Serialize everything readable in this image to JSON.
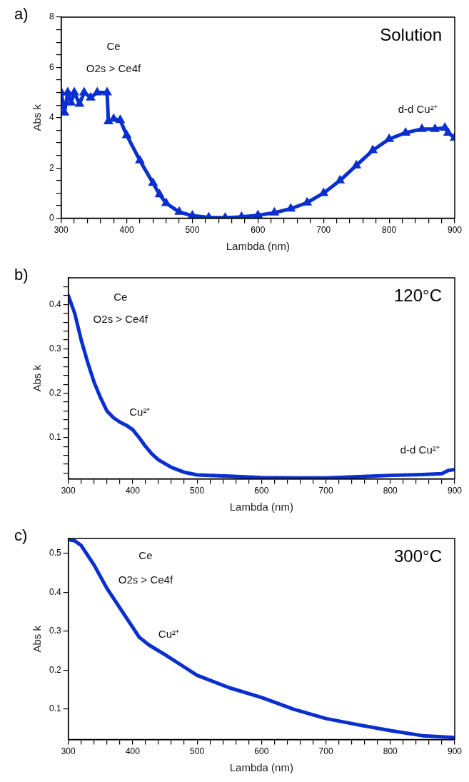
{
  "chart_data": [
    {
      "type": "line",
      "title": "a)",
      "subtitle": "Solution",
      "xlabel": "Lambda (nm)",
      "ylabel": "Abs k",
      "marker": "triangle",
      "x": [
        300,
        305,
        310,
        315,
        320,
        328,
        335,
        345,
        355,
        370,
        372,
        380,
        390,
        400,
        420,
        440,
        450,
        460,
        480,
        500,
        525,
        550,
        575,
        600,
        625,
        650,
        675,
        700,
        725,
        750,
        775,
        800,
        825,
        850,
        870,
        885,
        890,
        900
      ],
      "series": [
        {
          "color": "#0a2fd0",
          "values": [
            5.0,
            4.2,
            5.0,
            4.6,
            5.0,
            4.55,
            5.0,
            4.8,
            5.0,
            5.0,
            3.85,
            3.95,
            3.9,
            3.3,
            2.3,
            1.4,
            0.95,
            0.6,
            0.25,
            0.1,
            0.03,
            0.02,
            0.05,
            0.12,
            0.22,
            0.38,
            0.62,
            1.0,
            1.5,
            2.1,
            2.7,
            3.15,
            3.4,
            3.55,
            3.55,
            3.6,
            3.4,
            3.2
          ]
        }
      ],
      "xlim": [
        300,
        900
      ],
      "ylim": [
        0,
        8
      ],
      "xticks": [
        300,
        {
          "value": 320,
          "label": null
        },
        {
          "value": 340,
          "label": null
        },
        {
          "value": 360,
          "label": null
        },
        {
          "value": 380,
          "label": null
        },
        400,
        {
          "value": 420,
          "label": null
        },
        {
          "value": 440,
          "label": null
        },
        {
          "value": 460,
          "label": null
        },
        {
          "value": 480,
          "label": null
        },
        500,
        {
          "value": 520,
          "label": null
        },
        {
          "value": 540,
          "label": null
        },
        {
          "value": 560,
          "label": null
        },
        {
          "value": 580,
          "label": null
        },
        600,
        {
          "value": 620,
          "label": null
        },
        {
          "value": 640,
          "label": null
        },
        {
          "value": 660,
          "label": null
        },
        {
          "value": 680,
          "label": null
        },
        700,
        {
          "value": 720,
          "label": null
        },
        {
          "value": 740,
          "label": null
        },
        {
          "value": 760,
          "label": null
        },
        {
          "value": 780,
          "label": null
        },
        800,
        {
          "value": 820,
          "label": null
        },
        {
          "value": 840,
          "label": null
        },
        {
          "value": 860,
          "label": null
        },
        {
          "value": 880,
          "label": null
        },
        900
      ],
      "yticks": [
        0,
        {
          "value": 0.5,
          "label": null
        },
        {
          "value": 1,
          "label": null
        },
        {
          "value": 1.5,
          "label": null
        },
        2,
        {
          "value": 2.5,
          "label": null
        },
        {
          "value": 3,
          "label": null
        },
        {
          "value": 3.5,
          "label": null
        },
        4,
        {
          "value": 4.5,
          "label": null
        },
        {
          "value": 5,
          "label": null
        },
        {
          "value": 5.5,
          "label": null
        },
        6,
        {
          "value": 6.5,
          "label": null
        },
        {
          "value": 7,
          "label": null
        },
        {
          "value": 7.5,
          "label": null
        },
        8
      ],
      "annotations": [
        "Ce",
        "O2s > Ce4f",
        "d-d Cu²⁺"
      ]
    },
    {
      "type": "line",
      "title": "b)",
      "subtitle": "120°C",
      "xlabel": "Lambda (nm)",
      "ylabel": "Abs k",
      "x": [
        300,
        310,
        320,
        330,
        340,
        350,
        360,
        370,
        380,
        390,
        400,
        410,
        420,
        430,
        440,
        460,
        480,
        500,
        550,
        600,
        650,
        700,
        750,
        800,
        850,
        880,
        890,
        900
      ],
      "series": [
        {
          "color": "#0a2fd0",
          "values": [
            0.42,
            0.38,
            0.32,
            0.27,
            0.225,
            0.19,
            0.16,
            0.145,
            0.135,
            0.128,
            0.118,
            0.1,
            0.08,
            0.063,
            0.05,
            0.033,
            0.022,
            0.016,
            0.013,
            0.01,
            0.009,
            0.009,
            0.012,
            0.015,
            0.017,
            0.019,
            0.026,
            0.028
          ]
        }
      ],
      "xlim": [
        300,
        900
      ],
      "ylim": [
        0.007,
        0.46
      ],
      "xticks": [
        300,
        {
          "value": 320,
          "label": null
        },
        {
          "value": 340,
          "label": null
        },
        {
          "value": 360,
          "label": null
        },
        {
          "value": 380,
          "label": null
        },
        400,
        {
          "value": 420,
          "label": null
        },
        {
          "value": 440,
          "label": null
        },
        {
          "value": 460,
          "label": null
        },
        {
          "value": 480,
          "label": null
        },
        500,
        {
          "value": 520,
          "label": null
        },
        {
          "value": 540,
          "label": null
        },
        {
          "value": 560,
          "label": null
        },
        {
          "value": 580,
          "label": null
        },
        600,
        {
          "value": 620,
          "label": null
        },
        {
          "value": 640,
          "label": null
        },
        {
          "value": 660,
          "label": null
        },
        {
          "value": 680,
          "label": null
        },
        700,
        {
          "value": 720,
          "label": null
        },
        {
          "value": 740,
          "label": null
        },
        {
          "value": 760,
          "label": null
        },
        {
          "value": 780,
          "label": null
        },
        800,
        {
          "value": 820,
          "label": null
        },
        {
          "value": 840,
          "label": null
        },
        {
          "value": 860,
          "label": null
        },
        {
          "value": 880,
          "label": null
        },
        900
      ],
      "yticks": [
        {
          "value": 0.02,
          "label": null
        },
        {
          "value": 0.04,
          "label": null
        },
        {
          "value": 0.06,
          "label": null
        },
        {
          "value": 0.08,
          "label": null
        },
        0.1,
        {
          "value": 0.12,
          "label": null
        },
        {
          "value": 0.14,
          "label": null
        },
        {
          "value": 0.16,
          "label": null
        },
        {
          "value": 0.18,
          "label": null
        },
        0.2,
        {
          "value": 0.22,
          "label": null
        },
        {
          "value": 0.24,
          "label": null
        },
        {
          "value": 0.26,
          "label": null
        },
        {
          "value": 0.28,
          "label": null
        },
        0.3,
        {
          "value": 0.32,
          "label": null
        },
        {
          "value": 0.34,
          "label": null
        },
        {
          "value": 0.36,
          "label": null
        },
        {
          "value": 0.38,
          "label": null
        },
        0.4,
        {
          "value": 0.42,
          "label": null
        },
        {
          "value": 0.44,
          "label": null
        }
      ],
      "annotations": [
        "Ce",
        "O2s > Ce4f",
        "Cu²⁺",
        "d-d Cu²⁺"
      ]
    },
    {
      "type": "line",
      "title": "c)",
      "subtitle": "300°C",
      "xlabel": "Lambda (nm)",
      "ylabel": "Abs k",
      "x": [
        300,
        310,
        320,
        340,
        360,
        380,
        400,
        410,
        425,
        450,
        500,
        550,
        600,
        650,
        700,
        750,
        800,
        850,
        900
      ],
      "series": [
        {
          "color": "#0a2fd0",
          "values": [
            0.535,
            0.532,
            0.52,
            0.47,
            0.41,
            0.36,
            0.31,
            0.285,
            0.265,
            0.24,
            0.187,
            0.155,
            0.13,
            0.1,
            0.076,
            0.06,
            0.045,
            0.032,
            0.027
          ]
        }
      ],
      "xlim": [
        300,
        900
      ],
      "ylim": [
        0.022,
        0.538
      ],
      "xticks": [
        300,
        {
          "value": 320,
          "label": null
        },
        {
          "value": 340,
          "label": null
        },
        {
          "value": 360,
          "label": null
        },
        {
          "value": 380,
          "label": null
        },
        400,
        {
          "value": 420,
          "label": null
        },
        {
          "value": 440,
          "label": null
        },
        {
          "value": 460,
          "label": null
        },
        {
          "value": 480,
          "label": null
        },
        500,
        {
          "value": 520,
          "label": null
        },
        {
          "value": 540,
          "label": null
        },
        {
          "value": 560,
          "label": null
        },
        {
          "value": 580,
          "label": null
        },
        600,
        {
          "value": 620,
          "label": null
        },
        {
          "value": 640,
          "label": null
        },
        {
          "value": 660,
          "label": null
        },
        {
          "value": 680,
          "label": null
        },
        700,
        {
          "value": 720,
          "label": null
        },
        {
          "value": 740,
          "label": null
        },
        {
          "value": 760,
          "label": null
        },
        {
          "value": 780,
          "label": null
        },
        800,
        {
          "value": 820,
          "label": null
        },
        {
          "value": 840,
          "label": null
        },
        {
          "value": 860,
          "label": null
        },
        {
          "value": 880,
          "label": null
        },
        900
      ],
      "yticks": [
        0.1,
        0.2,
        0.3,
        0.4,
        0.5
      ],
      "annotations": [
        "Ce",
        "O2s > Ce4f",
        "Cu²⁺"
      ]
    }
  ]
}
